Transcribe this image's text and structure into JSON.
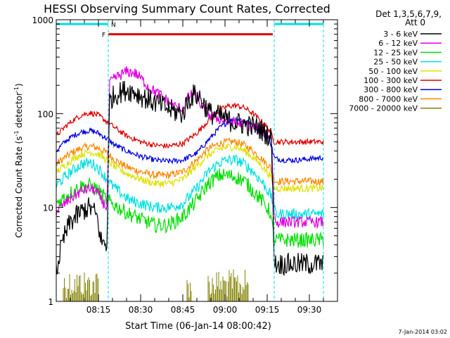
{
  "chart_data": {
    "type": "line",
    "title": "HESSI Observing Summary Count Rates, Corrected",
    "xlabel": "Start Time (06-Jan-14 08:00:42)",
    "ylabel_main": "Corrected Count Rate (s",
    "ylabel_sup1": "-1",
    "ylabel_mid": " detector",
    "ylabel_sup2": "-1",
    "ylabel_end": ")",
    "yscale": "log",
    "ylim": [
      1,
      1000
    ],
    "xlim_min": [
      0,
      100
    ],
    "xticks": [
      {
        "label": "08:15",
        "m": 15
      },
      {
        "label": "08:30",
        "m": 30
      },
      {
        "label": "08:45",
        "m": 45
      },
      {
        "label": "09:00",
        "m": 60
      },
      {
        "label": "09:15",
        "m": 75
      },
      {
        "label": "09:30",
        "m": 90
      }
    ],
    "yticks": [
      {
        "label": "1",
        "v": 1
      },
      {
        "label": "10",
        "v": 10
      },
      {
        "label": "100",
        "v": 100
      },
      {
        "label": "1000",
        "v": 1000
      }
    ],
    "legend_header": [
      "Det 1,3,5,6,7,9,",
      "Att 0"
    ],
    "legend_position": "right",
    "timestamp": "7-Jan-2014 03:02",
    "flags": {
      "F": {
        "label": "F",
        "color": "#e00000",
        "range": [
          18.5,
          77
        ],
        "value": 700
      },
      "N": {
        "label": "N",
        "color": "#00e0e0",
        "segments": [
          [
            0,
            18.5
          ],
          [
            77.5,
            95
          ]
        ],
        "value": 900
      }
    },
    "vlines": [
      18.5,
      77.5,
      95
    ],
    "series": [
      {
        "name": "3 - 6 keV",
        "color": "#000000",
        "noise": 0.12,
        "x": [
          0,
          1,
          3,
          5,
          8,
          10,
          12,
          14,
          15,
          15.6,
          18,
          19,
          21,
          25,
          28,
          30,
          33,
          38,
          42,
          45,
          47,
          49,
          51,
          53,
          55,
          58,
          61,
          64,
          68,
          72,
          75,
          76.5,
          77.5,
          78,
          82,
          86,
          90,
          95
        ],
        "y": [
          2,
          3,
          5,
          7,
          8.5,
          9.5,
          10,
          8.5,
          7,
          4.5,
          4,
          140,
          160,
          180,
          170,
          155,
          140,
          120,
          105,
          100,
          140,
          160,
          150,
          120,
          100,
          95,
          85,
          80,
          75,
          70,
          60,
          55,
          3,
          2.5,
          2.5,
          2.5,
          2.5,
          2.5
        ]
      },
      {
        "name": "6 - 12 keV",
        "color": "#e000e0",
        "noise": 0.06,
        "x": [
          0,
          3,
          6,
          9,
          12,
          14,
          15.6,
          16,
          18,
          19,
          21,
          25,
          28,
          30,
          33,
          38,
          42,
          45,
          47,
          49,
          51,
          53,
          55,
          58,
          61,
          64,
          68,
          72,
          75,
          76.5,
          77.5,
          78,
          82,
          86,
          90,
          95
        ],
        "y": [
          9,
          11,
          13,
          15,
          16,
          15,
          13,
          12,
          10,
          210,
          240,
          280,
          270,
          240,
          190,
          150,
          120,
          110,
          150,
          165,
          130,
          105,
          95,
          88,
          82,
          80,
          75,
          70,
          62,
          55,
          9,
          7,
          7,
          7,
          7,
          7
        ]
      },
      {
        "name": "12 - 25 keV",
        "color": "#00e000",
        "noise": 0.08,
        "x": [
          0,
          3,
          6,
          9,
          12,
          14,
          16,
          18,
          20,
          22,
          26,
          30,
          35,
          40,
          45,
          50,
          54,
          58,
          61,
          64,
          67,
          70,
          73,
          76,
          77.5,
          78,
          82,
          86,
          90,
          95
        ],
        "y": [
          11,
          13,
          15,
          17,
          17,
          16,
          14,
          12,
          11,
          10,
          8.5,
          7.5,
          6.5,
          6.5,
          8,
          12,
          18,
          22,
          22,
          21,
          19,
          15,
          12,
          9,
          4.5,
          4.5,
          4.5,
          4.5,
          4.5,
          4.5
        ]
      },
      {
        "name": "25 - 50 keV",
        "color": "#00e0e0",
        "noise": 0.06,
        "x": [
          0,
          3,
          6,
          9,
          12,
          14,
          16,
          18,
          20,
          22,
          26,
          30,
          35,
          40,
          45,
          50,
          54,
          58,
          61,
          64,
          67,
          70,
          73,
          76,
          77.5,
          78,
          82,
          86,
          90,
          95
        ],
        "y": [
          17,
          21,
          25,
          29,
          30,
          28,
          24,
          20,
          17,
          15,
          12,
          11,
          10,
          10,
          11,
          16,
          24,
          30,
          32,
          32,
          29,
          24,
          19,
          14,
          10,
          8.5,
          8.5,
          8.5,
          8.5,
          8.5
        ]
      },
      {
        "name": "50 - 100 keV",
        "color": "#e0e000",
        "noise": 0.04,
        "x": [
          0,
          3,
          6,
          9,
          12,
          15,
          18,
          21,
          25,
          30,
          35,
          40,
          45,
          50,
          54,
          58,
          61,
          64,
          67,
          70,
          73,
          76,
          77.5,
          78,
          82,
          86,
          90,
          95
        ],
        "y": [
          24,
          28,
          33,
          37,
          39,
          37,
          32,
          27,
          23,
          20,
          18,
          18,
          20,
          28,
          36,
          42,
          44,
          44,
          40,
          34,
          28,
          22,
          16,
          16,
          16,
          16,
          16,
          16
        ]
      },
      {
        "name": "100 - 300 keV",
        "color": "#e00000",
        "noise": 0.03,
        "x": [
          0,
          3,
          6,
          9,
          12,
          15,
          18,
          21,
          25,
          30,
          35,
          40,
          45,
          50,
          54,
          58,
          61,
          64,
          67,
          70,
          73,
          76,
          77.5,
          78,
          82,
          86,
          90,
          95
        ],
        "y": [
          58,
          72,
          85,
          97,
          102,
          96,
          82,
          70,
          58,
          50,
          46,
          45,
          48,
          62,
          84,
          108,
          120,
          122,
          115,
          100,
          82,
          66,
          50,
          50,
          50,
          50,
          50,
          50
        ]
      },
      {
        "name": "300 - 800 keV",
        "color": "#0000e0",
        "noise": 0.03,
        "x": [
          0,
          3,
          6,
          9,
          12,
          15,
          18,
          21,
          25,
          30,
          35,
          40,
          45,
          50,
          54,
          58,
          61,
          64,
          67,
          70,
          73,
          76,
          77.5,
          78,
          82,
          86,
          90,
          95
        ],
        "y": [
          40,
          50,
          58,
          64,
          66,
          62,
          54,
          46,
          40,
          35,
          32,
          31,
          32,
          38,
          52,
          70,
          82,
          88,
          85,
          76,
          64,
          52,
          34,
          33,
          32,
          32,
          33,
          34
        ]
      },
      {
        "name": "800 - 7000 keV",
        "color": "#ff8800",
        "noise": 0.04,
        "x": [
          0,
          3,
          6,
          9,
          12,
          15,
          18,
          21,
          25,
          30,
          35,
          40,
          45,
          50,
          54,
          58,
          61,
          64,
          67,
          70,
          73,
          76,
          77.5,
          78,
          82,
          86,
          90,
          95
        ],
        "y": [
          29,
          34,
          39,
          43,
          45,
          43,
          38,
          32,
          27,
          24,
          22,
          22,
          24,
          32,
          42,
          48,
          50,
          50,
          46,
          40,
          33,
          27,
          20,
          19,
          19,
          19,
          19,
          19
        ]
      },
      {
        "name": "7000 - 20000 keV",
        "color": "#808000",
        "noise": 0,
        "x": [],
        "y": [],
        "bursts": [
          [
            2.5,
            15
          ],
          [
            46.5,
            48
          ],
          [
            54,
            68.5
          ]
        ],
        "bursts_top": 2.2
      }
    ]
  }
}
